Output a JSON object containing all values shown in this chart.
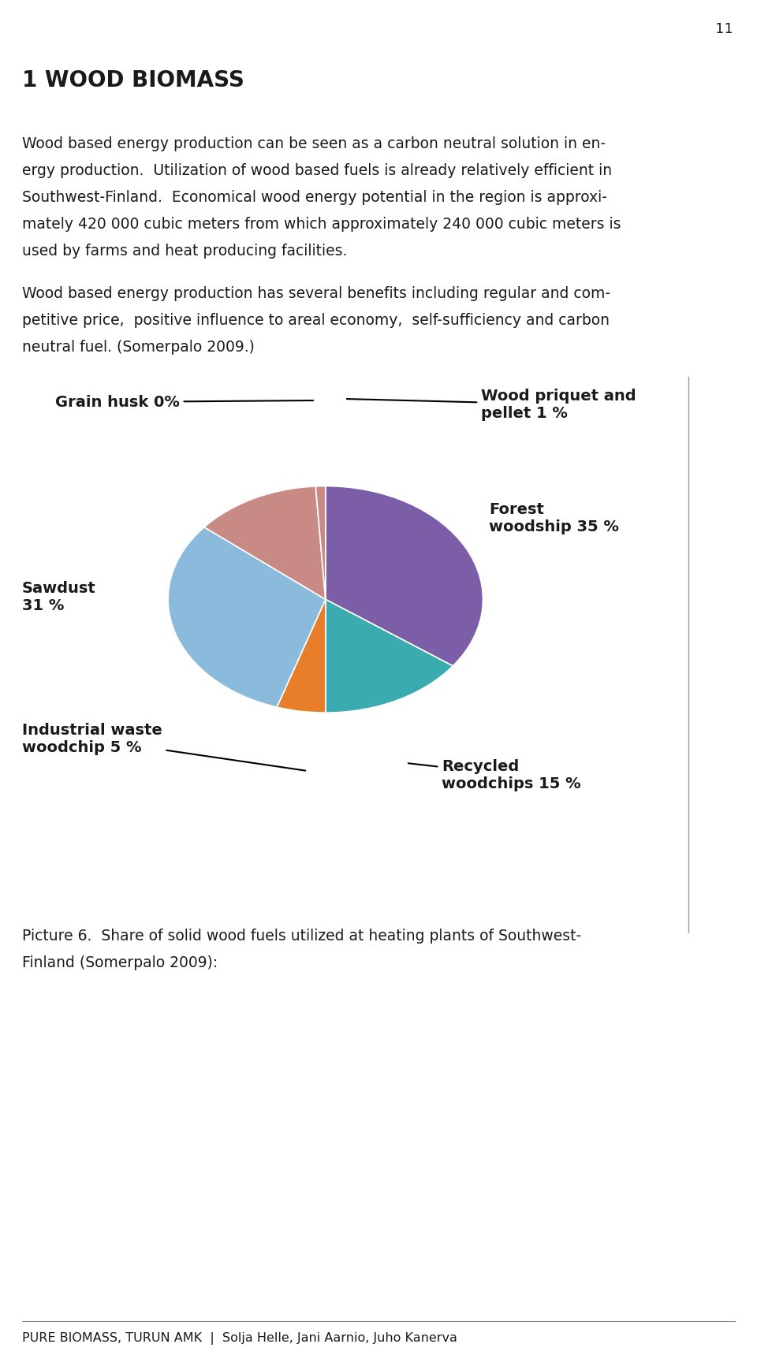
{
  "title": "1 WOOD BIOMASS",
  "page_number": "11",
  "para1_lines": [
    "Wood based energy production can be seen as a carbon neutral solution in en-",
    "ergy production.  Utilization of wood based fuels is already relatively efficient in",
    "Southwest-Finland.  Economical wood energy potential in the region is approxi-",
    "mately 420 000 cubic meters from which approximately 240 000 cubic meters is",
    "used by farms and heat producing facilities."
  ],
  "para2_lines": [
    "Wood based energy production has several benefits including regular and com-",
    "petitive price,  positive influence to areal economy,  self-sufficiency and carbon",
    "neutral fuel. (Somerpalo 2009.)"
  ],
  "caption_lines": [
    "Picture 6.  Share of solid wood fuels utilized at heating plants of Southwest-",
    "Finland (Somerpalo 2009):"
  ],
  "footer": "PURE BIOMASS, TURUN AMK  |  Solja Helle, Jani Aarnio, Juho Kanerva",
  "pie_sizes": [
    35,
    15,
    5,
    31,
    13,
    1
  ],
  "pie_colors": [
    "#7B5EA7",
    "#3AABB0",
    "#E87D2A",
    "#8ABADC",
    "#C98A85",
    "#C98A85"
  ],
  "background_color": "#FFFFFF",
  "text_color": "#1A1A1A"
}
